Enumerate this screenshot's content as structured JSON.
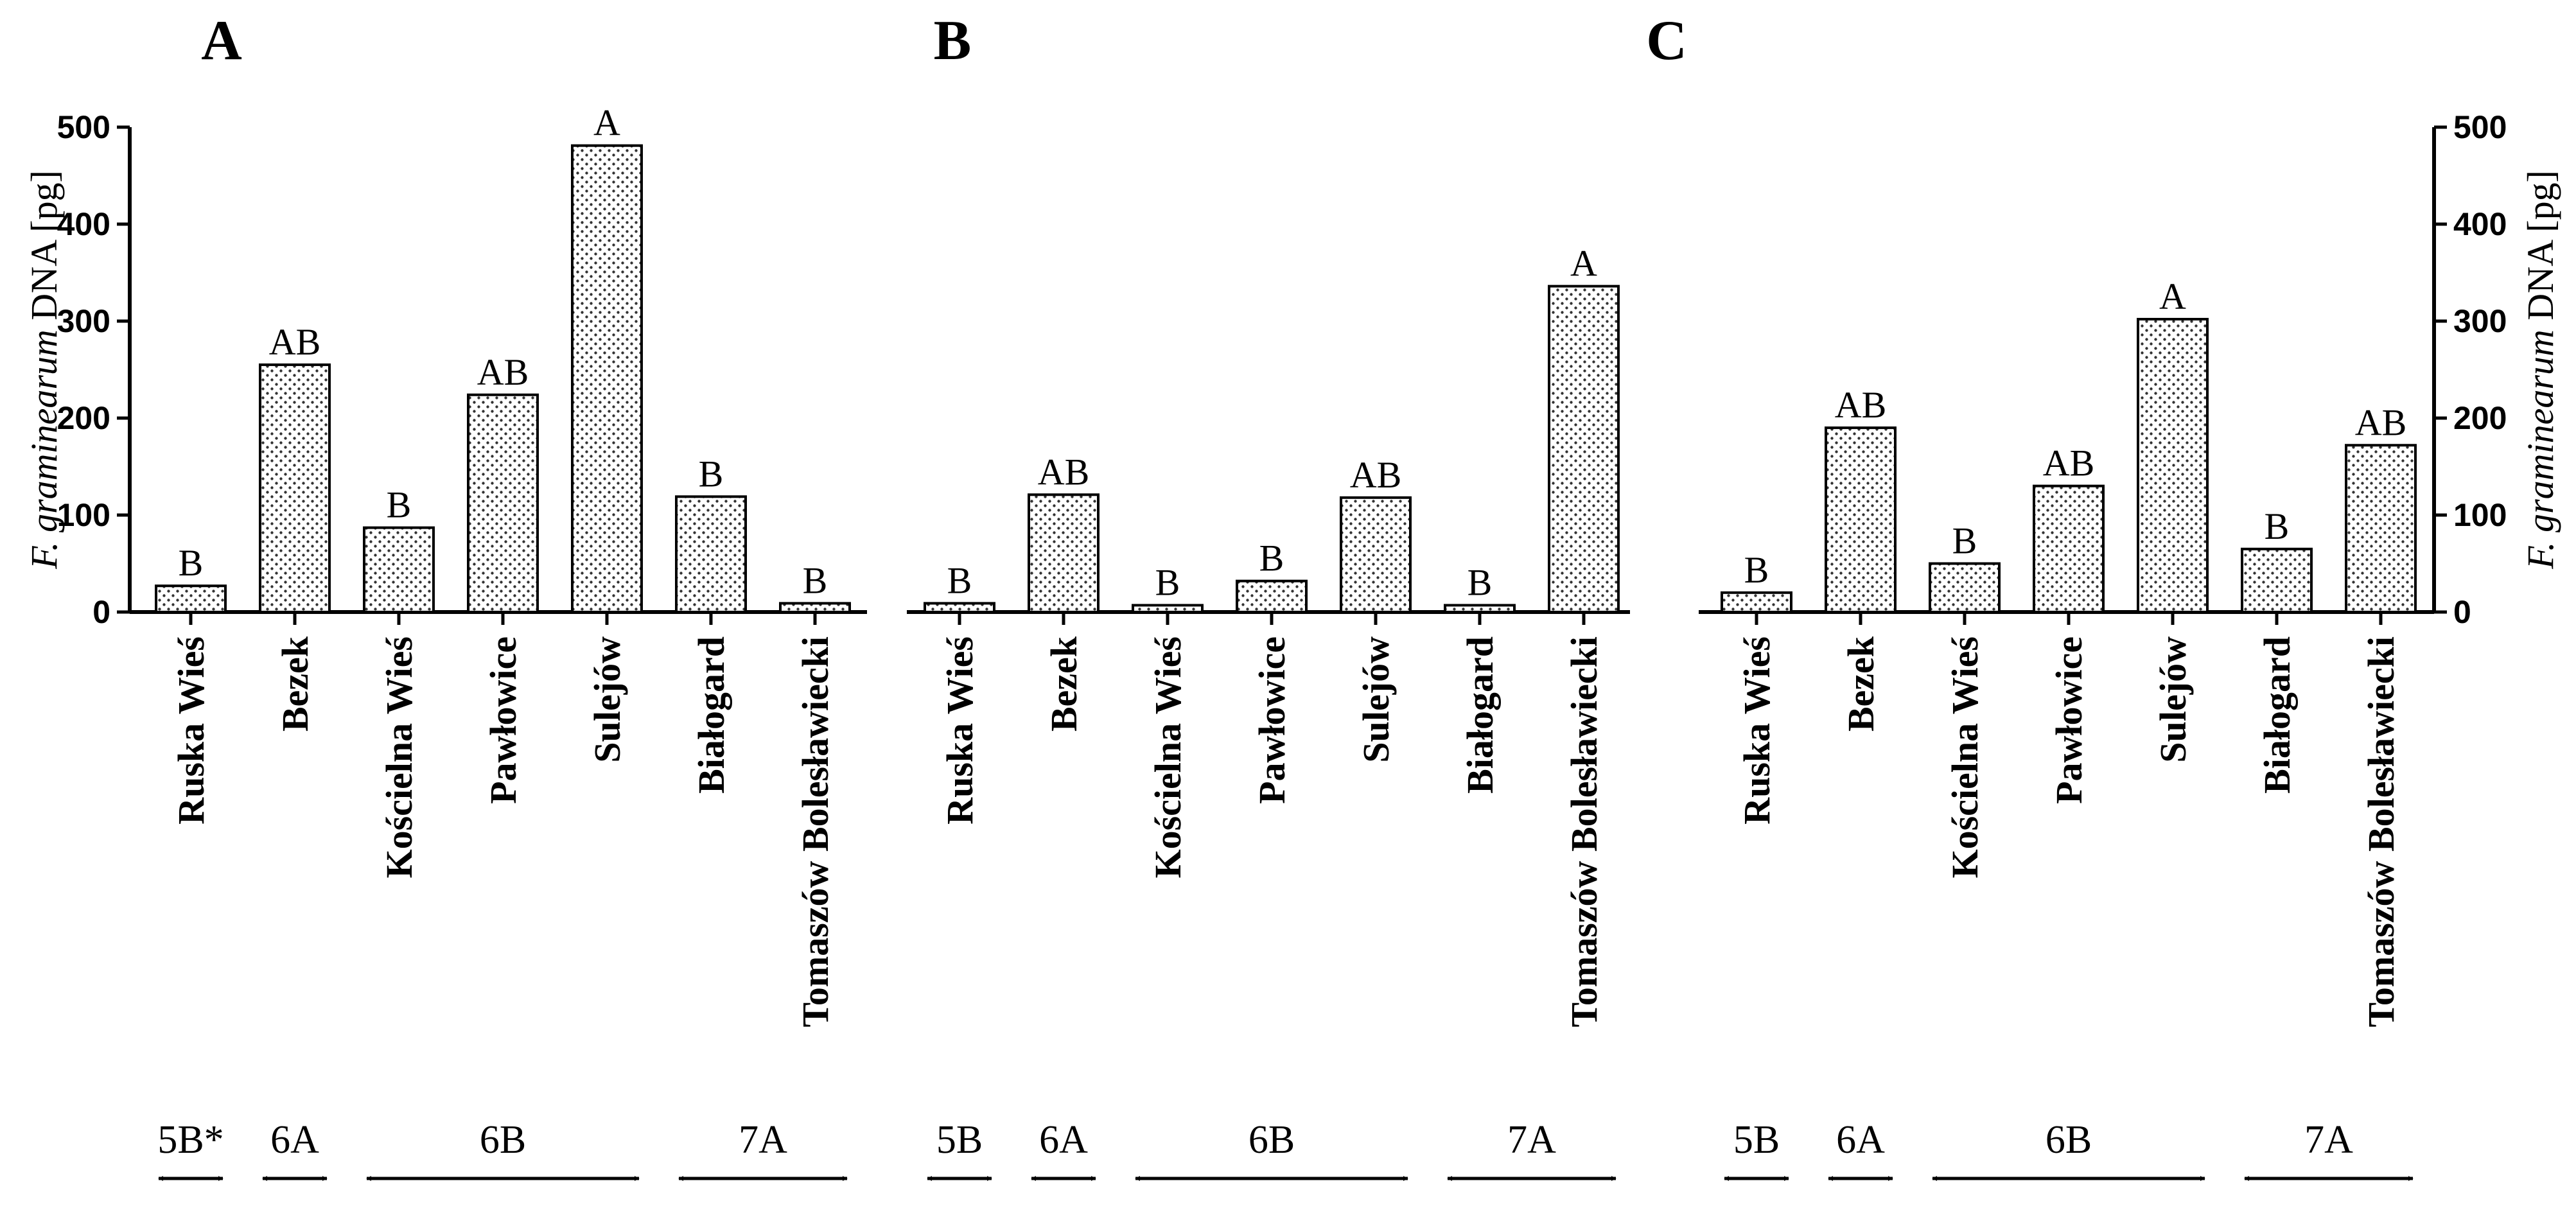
{
  "figure": {
    "y_axis_label_italic": "F. graminearum",
    "y_axis_label_rest": " DNA [pg]",
    "y_ticks": [
      "0",
      "100",
      "200",
      "300",
      "400",
      "500"
    ]
  },
  "chart_data": [
    {
      "type": "bar",
      "title": "A",
      "ylabel": "F. graminearum DNA [pg]",
      "ylim": [
        0,
        500
      ],
      "categories": [
        "Ruska Wieś",
        "Bezek",
        "Kościelna Wieś",
        "Pawłowice",
        "Sulejów",
        "Białogard",
        "Tomaszów Bolesławiecki"
      ],
      "values": [
        27,
        255,
        87,
        224,
        481,
        119,
        9
      ],
      "significance": [
        "B",
        "AB",
        "B",
        "AB",
        "A",
        "B",
        "B"
      ],
      "groups": [
        {
          "label": "5B*",
          "span": [
            0,
            0
          ]
        },
        {
          "label": "6A",
          "span": [
            1,
            1
          ]
        },
        {
          "label": "6B",
          "span": [
            2,
            4
          ]
        },
        {
          "label": "7A",
          "span": [
            5,
            6
          ]
        }
      ]
    },
    {
      "type": "bar",
      "title": "B",
      "ylabel": "F. graminearum DNA [pg]",
      "ylim": [
        0,
        500
      ],
      "categories": [
        "Ruska Wieś",
        "Bezek",
        "Kościelna Wieś",
        "Pawłowice",
        "Sulejów",
        "Białogard",
        "Tomaszów Bolesławiecki"
      ],
      "values": [
        9,
        121,
        7,
        32,
        118,
        7,
        336
      ],
      "significance": [
        "B",
        "AB",
        "B",
        "B",
        "AB",
        "B",
        "A"
      ],
      "groups": [
        {
          "label": "5B",
          "span": [
            0,
            0
          ]
        },
        {
          "label": "6A",
          "span": [
            1,
            1
          ]
        },
        {
          "label": "6B",
          "span": [
            2,
            4
          ]
        },
        {
          "label": "7A",
          "span": [
            5,
            6
          ]
        }
      ]
    },
    {
      "type": "bar",
      "title": "C",
      "ylabel": "F. graminearum DNA [pg]",
      "ylim": [
        0,
        500
      ],
      "categories": [
        "Ruska Wieś",
        "Bezek",
        "Kościelna Wieś",
        "Pawłowice",
        "Sulejów",
        "Białogard",
        "Tomaszów Bolesławiecki"
      ],
      "values": [
        20,
        190,
        50,
        130,
        302,
        65,
        172
      ],
      "significance": [
        "B",
        "AB",
        "B",
        "AB",
        "A",
        "B",
        "AB"
      ],
      "groups": [
        {
          "label": "5B",
          "span": [
            0,
            0
          ]
        },
        {
          "label": "6A",
          "span": [
            1,
            1
          ]
        },
        {
          "label": "6B",
          "span": [
            2,
            4
          ]
        },
        {
          "label": "7A",
          "span": [
            5,
            6
          ]
        }
      ]
    }
  ]
}
